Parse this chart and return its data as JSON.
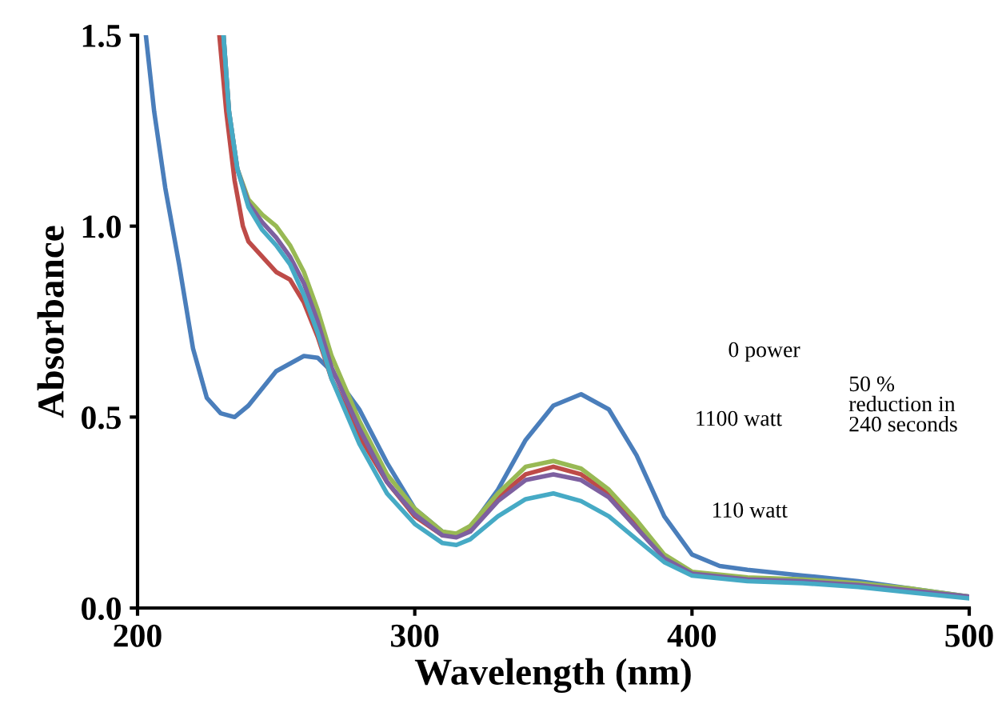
{
  "chart_data": {
    "type": "line",
    "xlabel": "Wavelength (nm)",
    "ylabel": "Absorbance",
    "xlim": [
      200,
      500
    ],
    "ylim": [
      0,
      1.5
    ],
    "xticks": [
      200,
      300,
      400,
      500
    ],
    "yticks": [
      {
        "value": 0,
        "label": "0.0"
      },
      {
        "value": 0.5,
        "label": "0.5"
      },
      {
        "value": 1,
        "label": "1.0"
      },
      {
        "value": 1.5,
        "label": "1.5"
      }
    ],
    "grid": false,
    "legend": false,
    "marker": "none",
    "line_style": "solid",
    "series": [
      {
        "color": "#4a7ebb",
        "x": [
          203,
          206,
          210,
          215,
          220,
          225,
          230,
          235,
          240,
          250,
          260,
          265,
          270,
          280,
          290,
          300,
          310,
          315,
          320,
          330,
          340,
          350,
          360,
          370,
          380,
          390,
          400,
          410,
          420,
          440,
          460,
          480,
          500
        ],
        "values": [
          1.5,
          1.3,
          1.1,
          0.9,
          0.68,
          0.55,
          0.51,
          0.5,
          0.53,
          0.62,
          0.66,
          0.655,
          0.62,
          0.52,
          0.38,
          0.26,
          0.2,
          0.19,
          0.21,
          0.31,
          0.44,
          0.53,
          0.56,
          0.52,
          0.4,
          0.24,
          0.14,
          0.11,
          0.1,
          0.085,
          0.07,
          0.05,
          0.03
        ]
      },
      {
        "color": "#be4b48",
        "x": [
          229.5,
          232,
          235,
          238,
          240,
          245,
          250,
          255,
          260,
          265,
          270,
          280,
          290,
          300,
          310,
          315,
          320,
          330,
          340,
          350,
          360,
          370,
          380,
          390
        ],
        "values": [
          1.5,
          1.3,
          1.12,
          1.0,
          0.96,
          0.92,
          0.88,
          0.86,
          0.8,
          0.71,
          0.6,
          0.45,
          0.33,
          0.24,
          0.19,
          0.19,
          0.21,
          0.29,
          0.35,
          0.37,
          0.35,
          0.3,
          0.22,
          0.13
        ]
      },
      {
        "color": "#98b954",
        "x": [
          231,
          233,
          236,
          240,
          245,
          250,
          255,
          260,
          265,
          270,
          280,
          290,
          300,
          310,
          315,
          320,
          330,
          340,
          350,
          360,
          370,
          380,
          390,
          400,
          420,
          440,
          460,
          480,
          500
        ],
        "values": [
          1.5,
          1.3,
          1.15,
          1.07,
          1.03,
          1.0,
          0.95,
          0.88,
          0.78,
          0.66,
          0.49,
          0.35,
          0.26,
          0.2,
          0.195,
          0.215,
          0.3,
          0.37,
          0.385,
          0.365,
          0.31,
          0.23,
          0.14,
          0.095,
          0.08,
          0.075,
          0.065,
          0.05,
          0.03
        ]
      },
      {
        "color": "#7d60a0",
        "x": [
          231,
          233,
          236,
          240,
          245,
          250,
          255,
          260,
          265,
          270,
          280,
          290,
          300,
          310,
          315,
          320,
          330,
          340,
          350,
          360,
          370,
          380,
          390,
          400,
          420,
          440,
          460,
          480,
          500
        ],
        "values": [
          1.5,
          1.3,
          1.15,
          1.06,
          1.01,
          0.97,
          0.92,
          0.85,
          0.75,
          0.63,
          0.47,
          0.33,
          0.245,
          0.19,
          0.185,
          0.2,
          0.28,
          0.335,
          0.35,
          0.335,
          0.29,
          0.21,
          0.13,
          0.09,
          0.075,
          0.07,
          0.06,
          0.045,
          0.03
        ]
      },
      {
        "color": "#46aac5",
        "x": [
          231,
          233,
          236,
          240,
          245,
          250,
          255,
          260,
          265,
          270,
          280,
          290,
          300,
          310,
          315,
          320,
          330,
          340,
          350,
          360,
          370,
          380,
          390,
          400,
          420,
          440,
          460,
          480,
          500
        ],
        "values": [
          1.5,
          1.3,
          1.15,
          1.05,
          0.99,
          0.95,
          0.9,
          0.82,
          0.72,
          0.6,
          0.43,
          0.3,
          0.22,
          0.17,
          0.165,
          0.18,
          0.24,
          0.285,
          0.3,
          0.28,
          0.24,
          0.18,
          0.12,
          0.085,
          0.07,
          0.065,
          0.055,
          0.04,
          0.025
        ]
      }
    ],
    "annotations": [
      "0 power",
      "1100 watt",
      "50 %\nreduction in\n240 seconds",
      "110 watt"
    ]
  }
}
